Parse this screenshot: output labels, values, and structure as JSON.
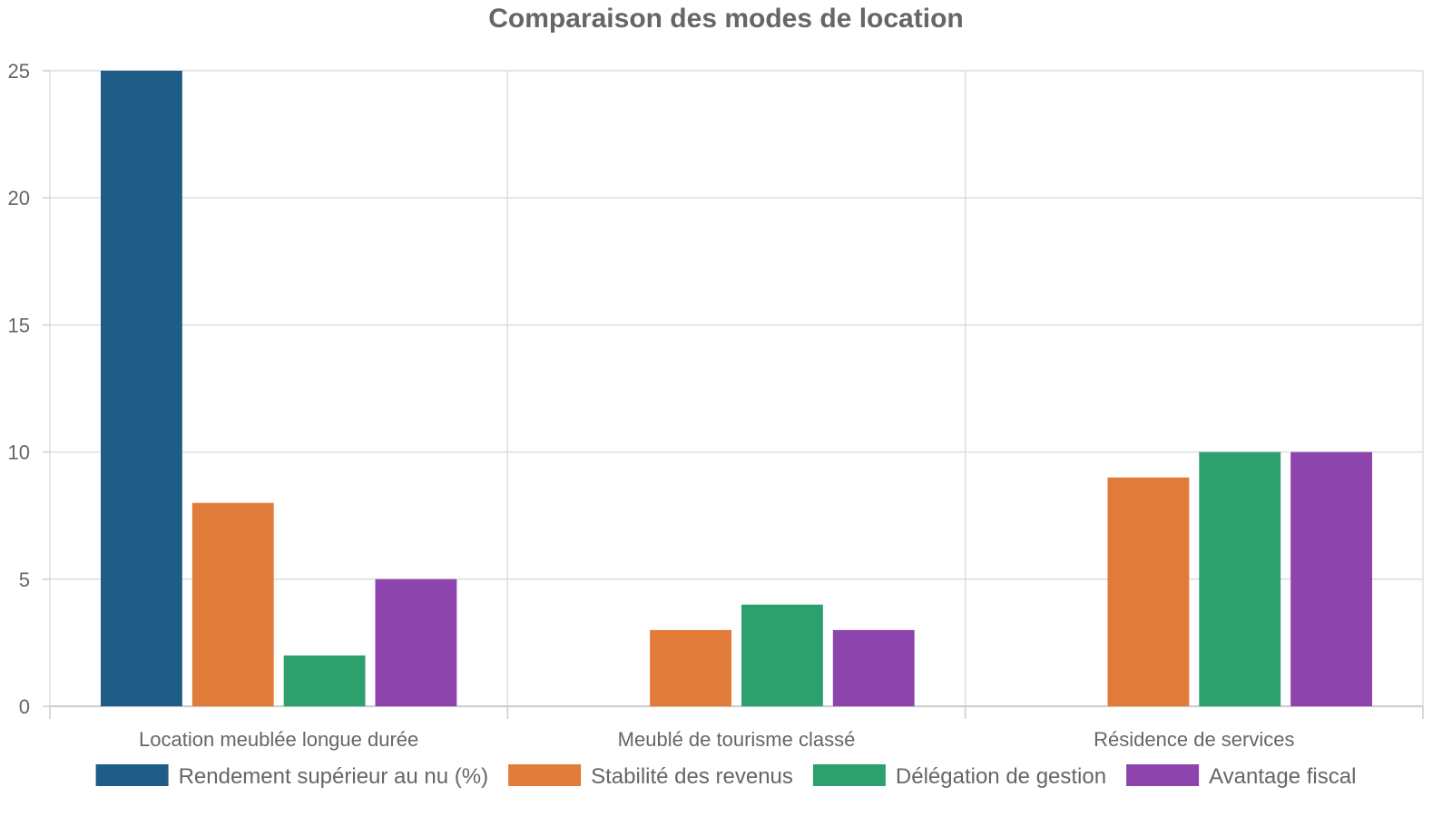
{
  "chart_data": {
    "type": "bar",
    "title": "Comparaison des modes de location",
    "xlabel": "",
    "ylabel": "",
    "categories": [
      "Location meublée longue durée",
      "Meublé de tourisme classé",
      "Résidence de services"
    ],
    "series": [
      {
        "name": "Rendement supérieur au nu (%)",
        "color": "#1f5c87",
        "values": [
          25,
          0,
          0
        ]
      },
      {
        "name": "Stabilité des revenus",
        "color": "#e07b39",
        "values": [
          8,
          3,
          9
        ]
      },
      {
        "name": "Délégation de gestion",
        "color": "#2ca06d",
        "values": [
          2,
          4,
          10
        ]
      },
      {
        "name": "Avantage fiscal",
        "color": "#8e44ad",
        "values": [
          5,
          3,
          10
        ]
      }
    ],
    "ylim": [
      0,
      25
    ],
    "yticks": [
      0,
      5,
      10,
      15,
      20,
      25
    ],
    "grid": true,
    "legend_position": "bottom"
  }
}
